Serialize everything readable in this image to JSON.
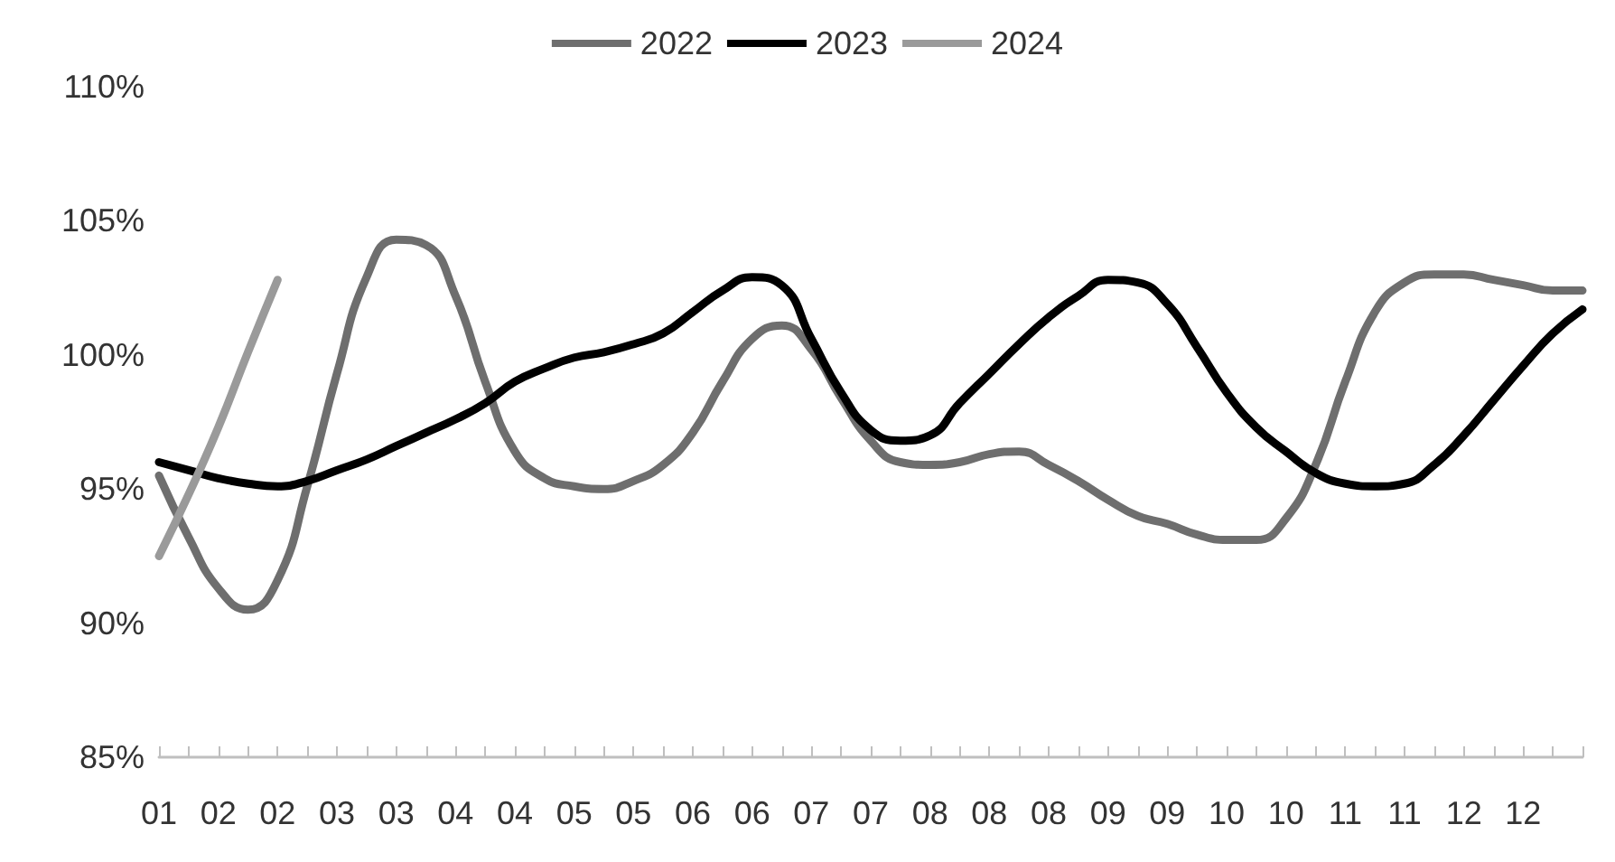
{
  "chart_data": {
    "type": "line",
    "categories": [
      "01",
      null,
      "02",
      null,
      "02",
      null,
      "03",
      null,
      "03",
      null,
      "04",
      null,
      "04",
      null,
      "05",
      null,
      "05",
      null,
      "06",
      null,
      "06",
      null,
      "07",
      null,
      "07",
      null,
      "08",
      null,
      "08",
      null,
      "08",
      null,
      "09",
      null,
      "09",
      null,
      "10",
      null,
      "10",
      null,
      "11",
      null,
      "11",
      null,
      "12",
      null,
      "12",
      null,
      null
    ],
    "series": [
      {
        "name": "2022",
        "color": "#6e6e6e",
        "values": [
          95.5,
          93.2,
          91.3,
          90.5,
          91.6,
          95.1,
          99.3,
          102.9,
          104.3,
          104.1,
          102.2,
          99.0,
          96.4,
          95.4,
          95.1,
          95.0,
          95.3,
          95.9,
          97.1,
          99.0,
          100.6,
          101.1,
          100.2,
          98.4,
          96.8,
          96.0,
          95.9,
          96.0,
          96.3,
          96.4,
          95.9,
          95.3,
          94.6,
          94.0,
          93.7,
          93.3,
          93.1,
          93.1,
          93.9,
          95.9,
          99.0,
          101.6,
          102.7,
          103.0,
          103.0,
          102.8,
          102.6,
          102.4,
          102.4
        ]
      },
      {
        "name": "2023",
        "color": "#000000",
        "values": [
          96.0,
          95.7,
          95.4,
          95.2,
          95.1,
          95.3,
          95.7,
          96.1,
          96.6,
          97.1,
          97.6,
          98.2,
          99.0,
          99.5,
          99.9,
          100.1,
          100.4,
          100.8,
          101.6,
          102.4,
          102.9,
          102.6,
          100.6,
          98.6,
          97.2,
          96.8,
          97.0,
          98.2,
          99.3,
          100.4,
          101.4,
          102.2,
          102.8,
          102.7,
          101.9,
          100.3,
          98.6,
          97.3,
          96.4,
          95.6,
          95.2,
          95.1,
          95.2,
          95.9,
          97.0,
          98.3,
          99.6,
          100.8,
          101.7
        ]
      },
      {
        "name": "2024",
        "color": "#9a9a9a",
        "values": [
          92.5,
          94.8,
          97.3,
          100.1,
          102.8,
          null,
          null,
          null,
          null,
          null,
          null,
          null,
          null,
          null,
          null,
          null,
          null,
          null,
          null,
          null,
          null,
          null,
          null,
          null,
          null,
          null,
          null,
          null,
          null,
          null,
          null,
          null,
          null,
          null,
          null,
          null,
          null,
          null,
          null,
          null,
          null,
          null,
          null,
          null,
          null,
          null,
          null,
          null,
          null
        ]
      }
    ],
    "ylim": [
      85,
      110
    ],
    "yticks": [
      {
        "value": 85,
        "label": "85%"
      },
      {
        "value": 90,
        "label": "90%"
      },
      {
        "value": 95,
        "label": "95%"
      },
      {
        "value": 100,
        "label": "100%"
      },
      {
        "value": 105,
        "label": "105%"
      },
      {
        "value": 110,
        "label": "110%"
      }
    ],
    "grid": false,
    "legend": "top",
    "marker": "none",
    "line_style": "solid"
  }
}
